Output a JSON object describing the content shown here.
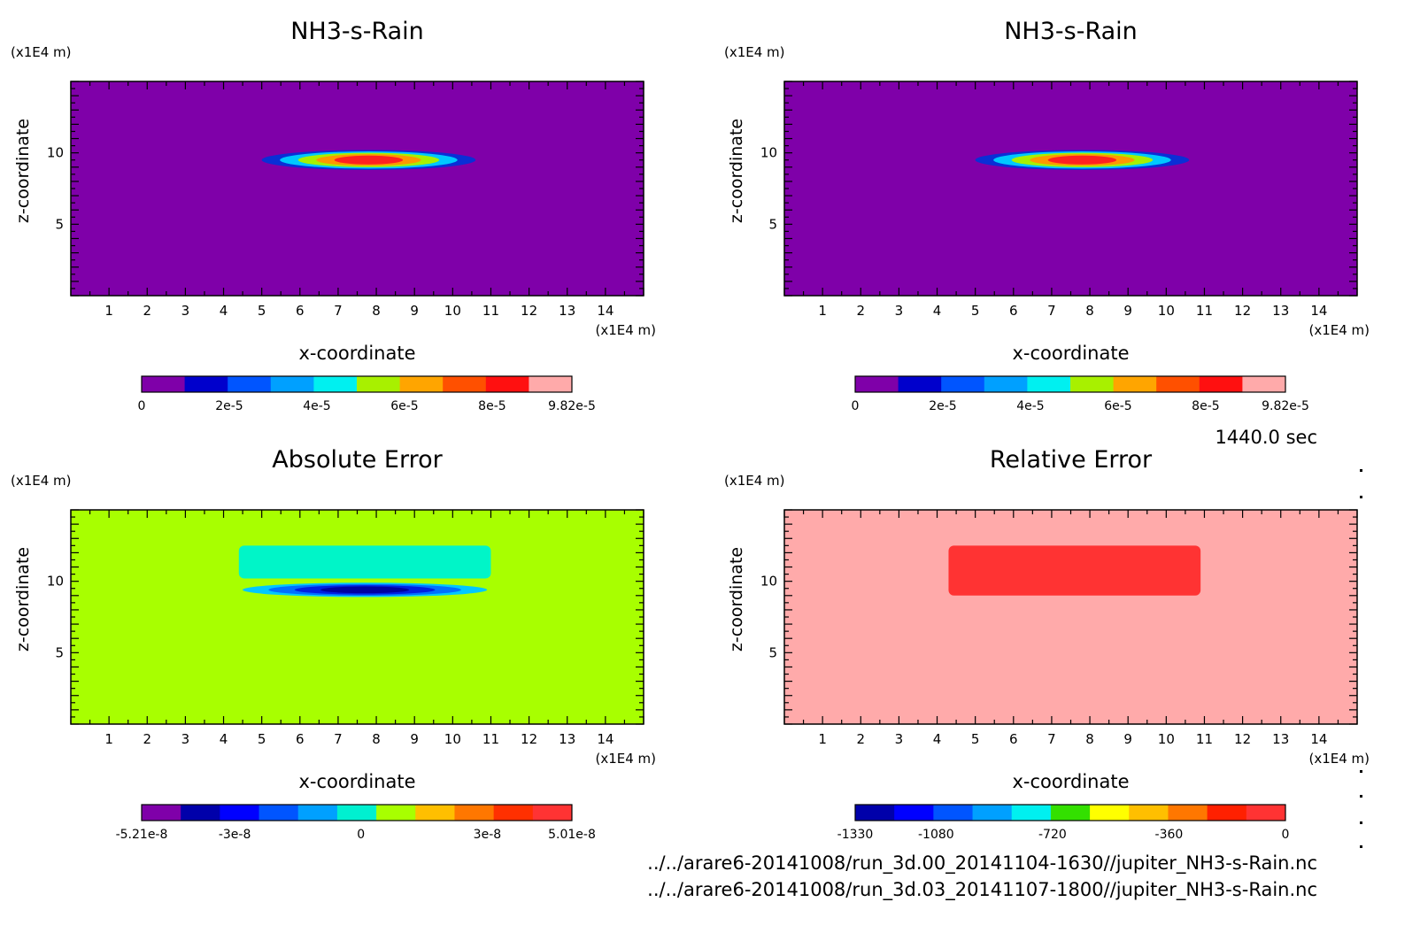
{
  "time_label": "1440.0 sec",
  "file_paths": [
    "../../arare6-20141008/run_3d.00_20141104-1630//jupiter_NH3-s-Rain.nc",
    "../../arare6-20141008/run_3d.03_20141107-1800//jupiter_NH3-s-Rain.nc"
  ],
  "chart_data": [
    {
      "type": "heatmap",
      "title": "NH3-s-Rain",
      "xlabel": "x-coordinate",
      "ylabel": "z-coordinate",
      "x_unit": "(x1E4 m)",
      "y_unit": "(x1E4 m)",
      "xlim": [
        0,
        15
      ],
      "ylim": [
        0,
        15
      ],
      "x_ticks": [
        1,
        2,
        3,
        4,
        5,
        6,
        7,
        8,
        9,
        10,
        11,
        12,
        13,
        14
      ],
      "y_ticks": [
        5,
        10
      ],
      "background_color": "#7f00a9",
      "features": [
        {
          "shape": "lens",
          "x_center": 7.8,
          "x_range": [
            4.8,
            10.4
          ],
          "z_center": 9.5,
          "half_thickness": 0.7,
          "layers": [
            "#0a2fd6",
            "#00c8ff",
            "#a8f000",
            "#ff9800",
            "#ff2020"
          ]
        }
      ],
      "colorbar": {
        "colors": [
          "#7f00a9",
          "#0000cc",
          "#0055ff",
          "#00a0ff",
          "#00f0f0",
          "#a8f000",
          "#ffa500",
          "#ff5000",
          "#ff1010",
          "#ffaaaa"
        ],
        "tick_labels": [
          "0",
          "2e-5",
          "4e-5",
          "6e-5",
          "8e-5",
          "9.82e-5"
        ],
        "tick_values": [
          0,
          2e-05,
          4e-05,
          6e-05,
          8e-05,
          9.82e-05
        ],
        "range": [
          0,
          9.82e-05
        ]
      }
    },
    {
      "type": "heatmap",
      "title": "NH3-s-Rain",
      "xlabel": "x-coordinate",
      "ylabel": "z-coordinate",
      "x_unit": "(x1E4 m)",
      "y_unit": "(x1E4 m)",
      "xlim": [
        0,
        15
      ],
      "ylim": [
        0,
        15
      ],
      "x_ticks": [
        1,
        2,
        3,
        4,
        5,
        6,
        7,
        8,
        9,
        10,
        11,
        12,
        13,
        14
      ],
      "y_ticks": [
        5,
        10
      ],
      "background_color": "#7f00a9",
      "features": [
        {
          "shape": "lens",
          "x_center": 7.8,
          "x_range": [
            4.8,
            10.4
          ],
          "z_center": 9.5,
          "half_thickness": 0.7,
          "layers": [
            "#0a2fd6",
            "#00c8ff",
            "#a8f000",
            "#ff9800",
            "#ff2020"
          ]
        }
      ],
      "colorbar": {
        "colors": [
          "#7f00a9",
          "#0000cc",
          "#0055ff",
          "#00a0ff",
          "#00f0f0",
          "#a8f000",
          "#ffa500",
          "#ff5000",
          "#ff1010",
          "#ffaaaa"
        ],
        "tick_labels": [
          "0",
          "2e-5",
          "4e-5",
          "6e-5",
          "8e-5",
          "9.82e-5"
        ],
        "tick_values": [
          0,
          2e-05,
          4e-05,
          6e-05,
          8e-05,
          9.82e-05
        ],
        "range": [
          0,
          9.82e-05
        ]
      }
    },
    {
      "type": "heatmap",
      "title": "Absolute Error",
      "xlabel": "x-coordinate",
      "ylabel": "z-coordinate",
      "x_unit": "(x1E4 m)",
      "y_unit": "(x1E4 m)",
      "xlim": [
        0,
        15
      ],
      "ylim": [
        0,
        15
      ],
      "x_ticks": [
        1,
        2,
        3,
        4,
        5,
        6,
        7,
        8,
        9,
        10,
        11,
        12,
        13,
        14
      ],
      "y_ticks": [
        5,
        10
      ],
      "background_color": "#a8ff00",
      "features": [
        {
          "shape": "block",
          "x_range": [
            4.4,
            11.0
          ],
          "z_range": [
            10.2,
            12.5
          ],
          "color": "#00f5c8"
        },
        {
          "shape": "lens",
          "x_center": 7.7,
          "x_range": [
            4.5,
            10.9
          ],
          "z_center": 9.4,
          "half_thickness": 0.5,
          "layers": [
            "#00c8ff",
            "#0070ff",
            "#0020e0",
            "#0000a0"
          ]
        }
      ],
      "colorbar": {
        "colors": [
          "#7f00a9",
          "#0000aa",
          "#0000ff",
          "#0055ff",
          "#00a0ff",
          "#00f0d0",
          "#a8ff00",
          "#ffbf00",
          "#ff7700",
          "#ff3000",
          "#ff3333"
        ],
        "tick_labels": [
          "-5.21e-8",
          "-3e-8",
          "0",
          "3e-8",
          "5.01e-8"
        ],
        "tick_values": [
          -5.21e-08,
          -3e-08,
          0,
          3e-08,
          5.01e-08
        ],
        "range": [
          -5.21e-08,
          5.01e-08
        ]
      }
    },
    {
      "type": "heatmap",
      "title": "Relative Error",
      "xlabel": "x-coordinate",
      "ylabel": "z-coordinate",
      "x_unit": "(x1E4 m)",
      "y_unit": "(x1E4 m)",
      "xlim": [
        0,
        15
      ],
      "ylim": [
        0,
        15
      ],
      "x_ticks": [
        1,
        2,
        3,
        4,
        5,
        6,
        7,
        8,
        9,
        10,
        11,
        12,
        13,
        14
      ],
      "y_ticks": [
        5,
        10
      ],
      "background_color": "#ffaaaa",
      "features": [
        {
          "shape": "block",
          "x_range": [
            4.3,
            10.9
          ],
          "z_range": [
            9.0,
            12.5
          ],
          "color": "#ff3333"
        }
      ],
      "colorbar": {
        "colors": [
          "#0000aa",
          "#0000ff",
          "#0055ff",
          "#00a0ff",
          "#00f0f0",
          "#33e000",
          "#ffff00",
          "#ffbf00",
          "#ff7700",
          "#ff2000",
          "#ff3333"
        ],
        "tick_labels": [
          "-1330",
          "-1080",
          "-720",
          "-360",
          "0"
        ],
        "tick_values": [
          -1330,
          -1080,
          -720,
          -360,
          0
        ],
        "range": [
          -1330,
          0
        ]
      }
    }
  ]
}
